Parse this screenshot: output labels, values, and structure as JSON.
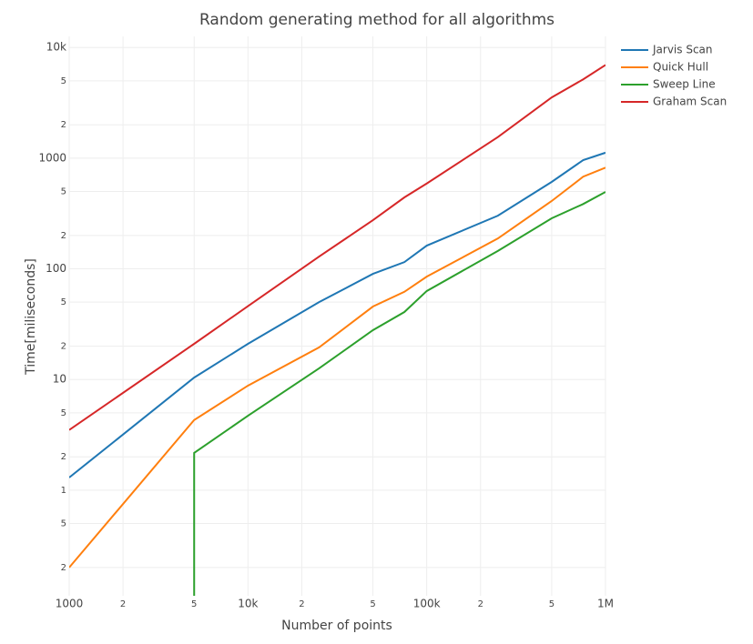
{
  "chart_data": {
    "type": "line",
    "title": "Random generating method for all algorithms",
    "x_label": "Number of points",
    "y_label": "Time[miliseconds]",
    "xscale": "log",
    "yscale": "log",
    "grid": true,
    "legend": "top-right",
    "xlim": [
      1000,
      1000000
    ],
    "ylim": [
      0.111,
      12600
    ],
    "xticks": [
      1000,
      {
        "value": 2000,
        "label": "2"
      },
      {
        "value": 5000,
        "label": "5"
      },
      {
        "value": 10000,
        "label": "10k"
      },
      {
        "value": 20000,
        "label": "2"
      },
      {
        "value": 50000,
        "label": "5"
      },
      {
        "value": 100000,
        "label": "100k"
      },
      {
        "value": 200000,
        "label": "2"
      },
      {
        "value": 500000,
        "label": "5"
      },
      {
        "value": 1000000,
        "label": "1M"
      }
    ],
    "yticks": [
      {
        "value": 0.2,
        "label": "2"
      },
      {
        "value": 0.5,
        "label": "5"
      },
      1,
      2,
      5,
      10,
      {
        "value": 20,
        "label": "2"
      },
      {
        "value": 50,
        "label": "5"
      },
      100,
      {
        "value": 200,
        "label": "2"
      },
      {
        "value": 500,
        "label": "5"
      },
      1000,
      {
        "value": 2000,
        "label": "2"
      },
      {
        "value": 5000,
        "label": "5"
      },
      {
        "value": 10000,
        "label": "10k"
      }
    ],
    "series": [
      {
        "name": "Jarvis Scan",
        "color": "#1f77b4",
        "x": [
          1000,
          5000,
          10000,
          25000,
          50000,
          75000,
          100000,
          250000,
          500000,
          750000,
          1000000
        ],
        "values": [
          1.3,
          10.4,
          21,
          50,
          90,
          115,
          162,
          302,
          610,
          960,
          1120
        ]
      },
      {
        "name": "Quick Hull",
        "color": "#ff7f0e",
        "x": [
          1000,
          5000,
          10000,
          25000,
          50000,
          75000,
          100000,
          250000,
          500000,
          750000,
          1000000
        ],
        "values": [
          0.2,
          4.3,
          8.8,
          19.5,
          45.6,
          62,
          85,
          188,
          410,
          680,
          820
        ]
      },
      {
        "name": "Sweep Line",
        "color": "#2ca02c",
        "x": [
          5000,
          5000,
          10000,
          25000,
          50000,
          75000,
          100000,
          250000,
          500000,
          750000,
          1000000
        ],
        "values": [
          0.1,
          2.17,
          4.7,
          12.6,
          27.9,
          40.7,
          63,
          145,
          286,
          385,
          495
        ]
      },
      {
        "name": "Graham Scan",
        "color": "#d62728",
        "x": [
          1000,
          5000,
          10000,
          25000,
          50000,
          75000,
          100000,
          250000,
          500000,
          750000,
          1000000
        ],
        "values": [
          3.5,
          21,
          46,
          129,
          275,
          442,
          590,
          1550,
          3540,
          5150,
          6950
        ]
      }
    ]
  }
}
